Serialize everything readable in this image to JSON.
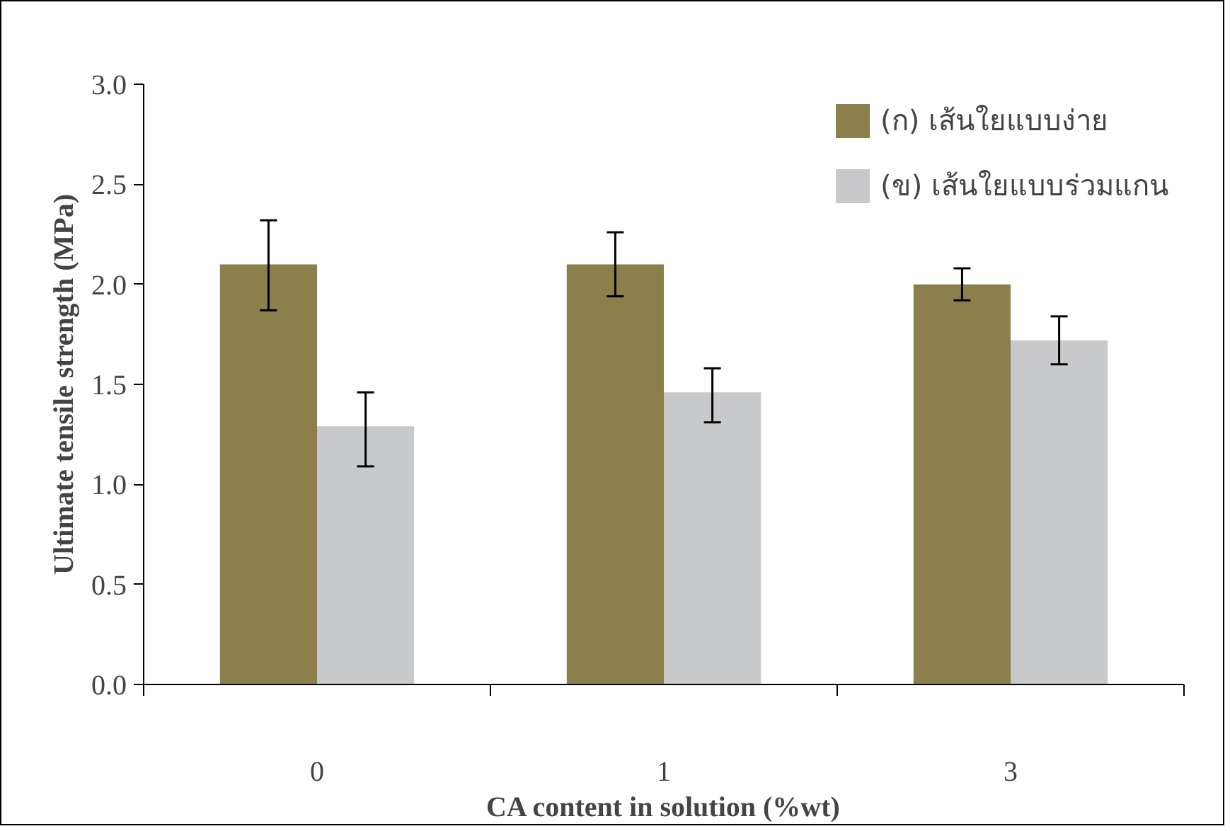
{
  "chart_data": {
    "type": "bar",
    "xlabel": "CA content in solution (%wt)",
    "ylabel": "Ultimate tensile strength (MPa)",
    "categories": [
      "0",
      "1",
      "3"
    ],
    "series": [
      {
        "name": "(ก) เส้นใยแบบง่าย",
        "color": "#8b7f4b",
        "values": [
          2.1,
          2.1,
          2.0
        ],
        "errors": [
          [
            1.87,
            2.32
          ],
          [
            1.94,
            2.26
          ],
          [
            1.92,
            2.08
          ]
        ]
      },
      {
        "name": "(ข) เส้นใยแบบร่วมแกน",
        "color": "#c8c9cb",
        "values": [
          1.29,
          1.46,
          1.72
        ],
        "errors": [
          [
            1.09,
            1.46
          ],
          [
            1.31,
            1.58
          ],
          [
            1.6,
            1.84
          ]
        ]
      }
    ],
    "ylim": [
      0,
      3
    ],
    "yticks": [
      {
        "value": 0,
        "label": "0.0"
      },
      {
        "value": 0.5,
        "label": "0.5"
      },
      {
        "value": 1,
        "label": "1.0"
      },
      {
        "value": 1.5,
        "label": "1.5"
      },
      {
        "value": 2,
        "label": "2.0"
      },
      {
        "value": 2.5,
        "label": "2.5"
      },
      {
        "value": 3,
        "label": "3.0"
      }
    ],
    "grid": false,
    "legend": "top right"
  }
}
